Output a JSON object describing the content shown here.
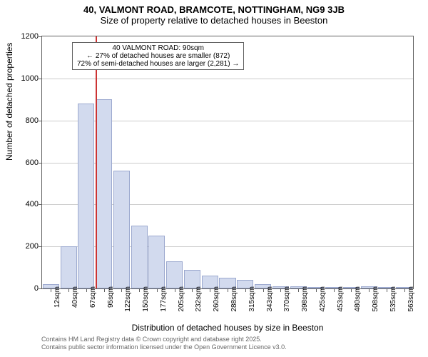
{
  "title": {
    "line1": "40, VALMONT ROAD, BRAMCOTE, NOTTINGHAM, NG9 3JB",
    "line2": "Size of property relative to detached houses in Beeston"
  },
  "chart": {
    "type": "histogram",
    "background_color": "#ffffff",
    "grid_color": "#cccccc",
    "axis_color": "#606060",
    "bar_fill": "#d2daee",
    "bar_border": "#9ca9cf",
    "marker_color": "#cc3333",
    "ylabel": "Number of detached properties",
    "xlabel": "Distribution of detached houses by size in Beeston",
    "ylim": [
      0,
      1200
    ],
    "ytick_step": 200,
    "yticks": [
      0,
      200,
      400,
      600,
      800,
      1000,
      1200
    ],
    "bar_width": 0.93,
    "marker_bin_index": 3,
    "xcategories": [
      "12sqm",
      "40sqm",
      "67sqm",
      "95sqm",
      "122sqm",
      "150sqm",
      "177sqm",
      "205sqm",
      "232sqm",
      "260sqm",
      "288sqm",
      "315sqm",
      "343sqm",
      "370sqm",
      "398sqm",
      "425sqm",
      "453sqm",
      "480sqm",
      "508sqm",
      "535sqm",
      "563sqm"
    ],
    "values": [
      20,
      200,
      880,
      900,
      560,
      300,
      250,
      130,
      90,
      60,
      50,
      40,
      20,
      10,
      10,
      5,
      5,
      5,
      10,
      5,
      5
    ],
    "annotation": {
      "line1": "40 VALMONT ROAD: 90sqm",
      "line2": "← 27% of detached houses are smaller (872)",
      "line3": "72% of semi-detached houses are larger (2,281) →",
      "box_bg": "#ffffff",
      "box_border": "#606060",
      "fontsize": 10
    },
    "label_fontsize": 12,
    "tick_fontsize": 11
  },
  "footer": {
    "line1": "Contains HM Land Registry data © Crown copyright and database right 2025.",
    "line2": "Contains public sector information licensed under the Open Government Licence v3.0.",
    "color": "#666666",
    "fontsize": 9
  }
}
